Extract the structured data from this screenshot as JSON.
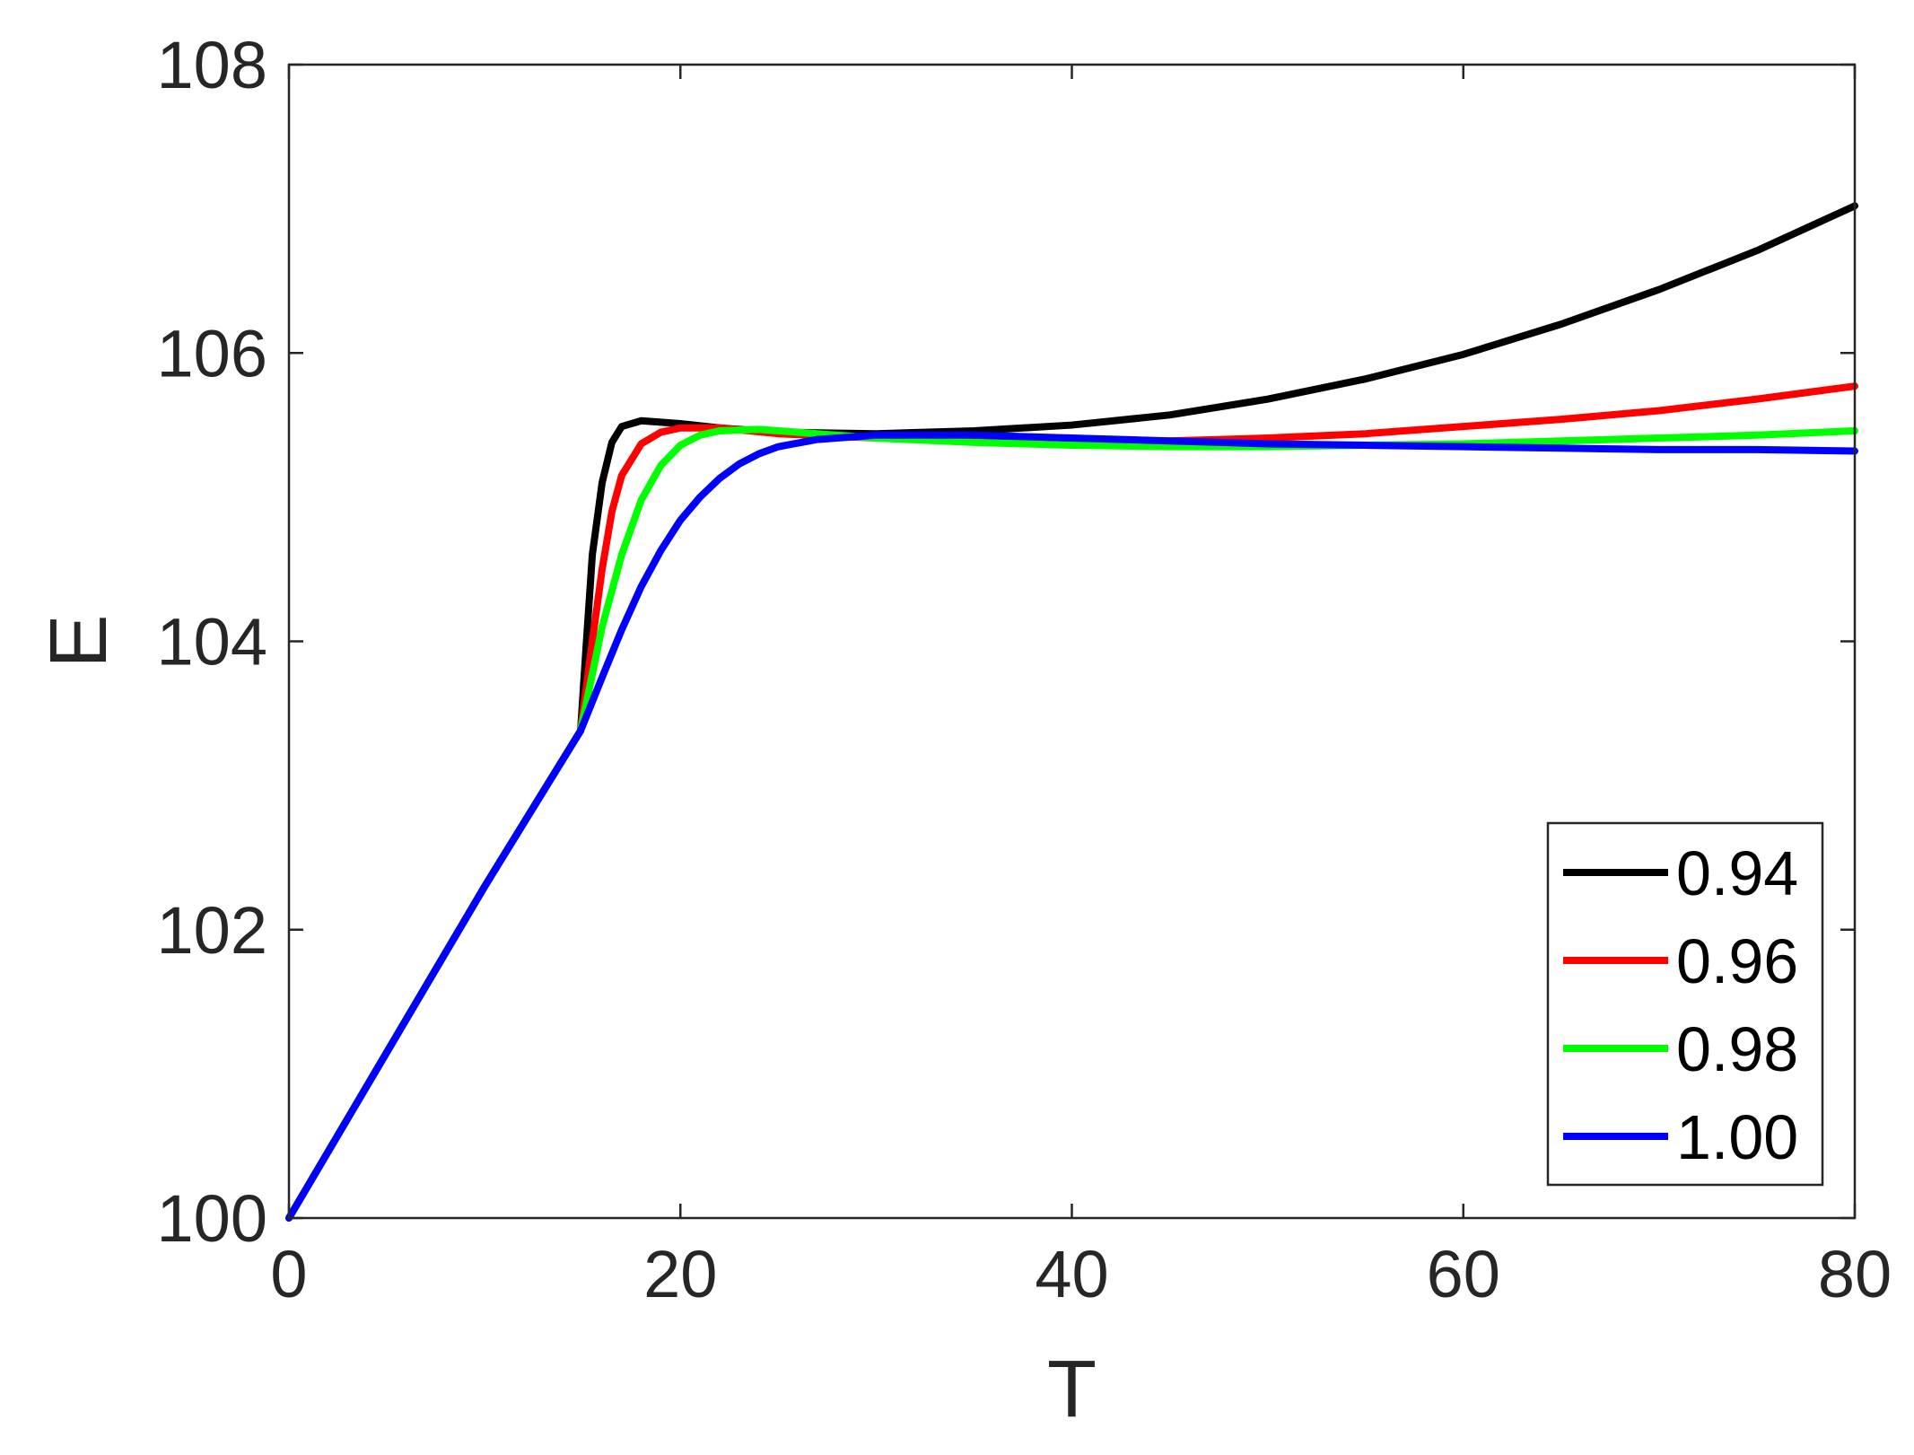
{
  "chart_data": {
    "type": "line",
    "title": "",
    "xlabel": "T",
    "ylabel": "E",
    "xlim": [
      0,
      80
    ],
    "ylim": [
      100,
      108
    ],
    "xticks": [
      0,
      20,
      40,
      60,
      80
    ],
    "yticks": [
      100,
      102,
      104,
      106,
      108
    ],
    "x_tick_labels": [
      "0",
      "20",
      "40",
      "60",
      "80"
    ],
    "y_tick_labels": [
      "100",
      "102",
      "104",
      "106",
      "108"
    ],
    "grid": false,
    "box": true,
    "legend": {
      "position": "bottom-right",
      "entries": [
        "0.94",
        "0.96",
        "0.98",
        "1.00"
      ]
    },
    "series": [
      {
        "name": "0.94",
        "color": "#000000",
        "points": [
          [
            0,
            100
          ],
          [
            5,
            101.15
          ],
          [
            10,
            102.3
          ],
          [
            14.9,
            103.38
          ],
          [
            15.2,
            104.0
          ],
          [
            15.5,
            104.6
          ],
          [
            16.0,
            105.1
          ],
          [
            16.5,
            105.38
          ],
          [
            17.0,
            105.49
          ],
          [
            18.0,
            105.53
          ],
          [
            20,
            105.51
          ],
          [
            22,
            105.48
          ],
          [
            25,
            105.45
          ],
          [
            30,
            105.44
          ],
          [
            35,
            105.46
          ],
          [
            40,
            105.5
          ],
          [
            45,
            105.57
          ],
          [
            50,
            105.68
          ],
          [
            55,
            105.82
          ],
          [
            60,
            105.99
          ],
          [
            65,
            106.2
          ],
          [
            70,
            106.44
          ],
          [
            75,
            106.71
          ],
          [
            80,
            107.02
          ]
        ]
      },
      {
        "name": "0.96",
        "color": "#ff0000",
        "points": [
          [
            0,
            100
          ],
          [
            5,
            101.15
          ],
          [
            10,
            102.3
          ],
          [
            14.9,
            103.38
          ],
          [
            15.5,
            104.0
          ],
          [
            16.0,
            104.5
          ],
          [
            16.5,
            104.9
          ],
          [
            17.0,
            105.15
          ],
          [
            18.0,
            105.37
          ],
          [
            19.0,
            105.45
          ],
          [
            20,
            105.48
          ],
          [
            22,
            105.48
          ],
          [
            25,
            105.44
          ],
          [
            30,
            105.41
          ],
          [
            35,
            105.39
          ],
          [
            40,
            105.38
          ],
          [
            45,
            105.39
          ],
          [
            50,
            105.41
          ],
          [
            55,
            105.44
          ],
          [
            60,
            105.49
          ],
          [
            65,
            105.54
          ],
          [
            70,
            105.6
          ],
          [
            75,
            105.68
          ],
          [
            80,
            105.77
          ]
        ]
      },
      {
        "name": "0.98",
        "color": "#00ff00",
        "points": [
          [
            0,
            100
          ],
          [
            5,
            101.15
          ],
          [
            10,
            102.3
          ],
          [
            14.9,
            103.38
          ],
          [
            16.0,
            104.1
          ],
          [
            17.0,
            104.6
          ],
          [
            18.0,
            104.98
          ],
          [
            19.0,
            105.22
          ],
          [
            20,
            105.36
          ],
          [
            21,
            105.43
          ],
          [
            22,
            105.46
          ],
          [
            24,
            105.47
          ],
          [
            27,
            105.44
          ],
          [
            30,
            105.41
          ],
          [
            35,
            105.38
          ],
          [
            40,
            105.36
          ],
          [
            45,
            105.35
          ],
          [
            50,
            105.35
          ],
          [
            55,
            105.36
          ],
          [
            60,
            105.37
          ],
          [
            65,
            105.39
          ],
          [
            70,
            105.41
          ],
          [
            75,
            105.43
          ],
          [
            80,
            105.46
          ]
        ]
      },
      {
        "name": "1.00",
        "color": "#0000ff",
        "points": [
          [
            0,
            100
          ],
          [
            5,
            101.15
          ],
          [
            10,
            102.3
          ],
          [
            14.9,
            103.38
          ],
          [
            16,
            103.75
          ],
          [
            17,
            104.08
          ],
          [
            18,
            104.38
          ],
          [
            19,
            104.63
          ],
          [
            20,
            104.84
          ],
          [
            21,
            105.0
          ],
          [
            22,
            105.13
          ],
          [
            23,
            105.23
          ],
          [
            24,
            105.3
          ],
          [
            25,
            105.35
          ],
          [
            27,
            105.4
          ],
          [
            30,
            105.43
          ],
          [
            35,
            105.43
          ],
          [
            40,
            105.41
          ],
          [
            45,
            105.39
          ],
          [
            50,
            105.37
          ],
          [
            55,
            105.36
          ],
          [
            60,
            105.35
          ],
          [
            65,
            105.34
          ],
          [
            70,
            105.33
          ],
          [
            75,
            105.33
          ],
          [
            80,
            105.32
          ]
        ]
      }
    ]
  }
}
